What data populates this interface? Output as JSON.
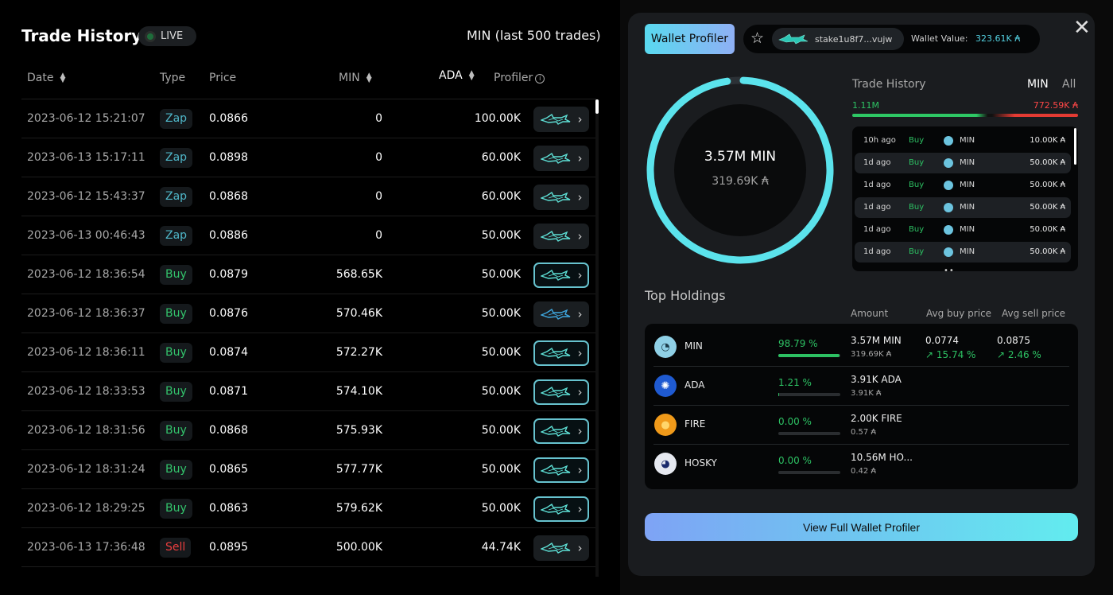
{
  "trade_history": {
    "title": "Trade History",
    "live_label": "LIVE",
    "subtitle": "MIN (last 500 trades)",
    "columns": {
      "date": "Date",
      "type": "Type",
      "price": "Price",
      "min": "MIN",
      "ada": "ADA",
      "profiler": "Profiler"
    },
    "rows": [
      {
        "date": "2023-06-12 15:21:07",
        "type": "Zap",
        "price": "0.0866",
        "min": "0",
        "ada": "100.00K",
        "highlight": false
      },
      {
        "date": "2023-06-13 15:17:11",
        "type": "Zap",
        "price": "0.0898",
        "min": "0",
        "ada": "60.00K",
        "highlight": false
      },
      {
        "date": "2023-06-12 15:43:37",
        "type": "Zap",
        "price": "0.0868",
        "min": "0",
        "ada": "60.00K",
        "highlight": false
      },
      {
        "date": "2023-06-13 00:46:43",
        "type": "Zap",
        "price": "0.0886",
        "min": "0",
        "ada": "50.00K",
        "highlight": false
      },
      {
        "date": "2023-06-12 18:36:54",
        "type": "Buy",
        "price": "0.0879",
        "min": "568.65K",
        "ada": "50.00K",
        "highlight": true
      },
      {
        "date": "2023-06-12 18:36:37",
        "type": "Buy",
        "price": "0.0876",
        "min": "570.46K",
        "ada": "50.00K",
        "highlight": false
      },
      {
        "date": "2023-06-12 18:36:11",
        "type": "Buy",
        "price": "0.0874",
        "min": "572.27K",
        "ada": "50.00K",
        "highlight": true
      },
      {
        "date": "2023-06-12 18:33:53",
        "type": "Buy",
        "price": "0.0871",
        "min": "574.10K",
        "ada": "50.00K",
        "highlight": true
      },
      {
        "date": "2023-06-12 18:31:56",
        "type": "Buy",
        "price": "0.0868",
        "min": "575.93K",
        "ada": "50.00K",
        "highlight": true
      },
      {
        "date": "2023-06-12 18:31:24",
        "type": "Buy",
        "price": "0.0865",
        "min": "577.77K",
        "ada": "50.00K",
        "highlight": true
      },
      {
        "date": "2023-06-12 18:29:25",
        "type": "Buy",
        "price": "0.0863",
        "min": "579.62K",
        "ada": "50.00K",
        "highlight": true
      },
      {
        "date": "2023-06-13 17:36:48",
        "type": "Sell",
        "price": "0.0895",
        "min": "500.00K",
        "ada": "44.74K",
        "highlight": false
      }
    ]
  },
  "wallet_profiler": {
    "button_label": "Wallet Profiler",
    "address": "stake1u8f7...vujw",
    "wallet_value_label": "Wallet Value:",
    "wallet_value": "323.61K ₳",
    "ring": {
      "main": "3.57M MIN",
      "sub": "319.69K ₳",
      "fill_fraction": 0.988
    },
    "trade_history": {
      "title": "Trade History",
      "tab_min": "MIN",
      "tab_all": "All",
      "buy_total": "1.11M",
      "sell_total": "772.59K",
      "items": [
        {
          "time": "10h ago",
          "type": "Buy",
          "coin": "MIN",
          "amount": "10.00K ₳"
        },
        {
          "time": "1d ago",
          "type": "Buy",
          "coin": "MIN",
          "amount": "50.00K ₳"
        },
        {
          "time": "1d ago",
          "type": "Buy",
          "coin": "MIN",
          "amount": "50.00K ₳"
        },
        {
          "time": "1d ago",
          "type": "Buy",
          "coin": "MIN",
          "amount": "50.00K ₳"
        },
        {
          "time": "1d ago",
          "type": "Buy",
          "coin": "MIN",
          "amount": "50.00K ₳"
        },
        {
          "time": "1d ago",
          "type": "Buy",
          "coin": "MIN",
          "amount": "50.00K ₳"
        }
      ]
    },
    "top_holdings": {
      "title": "Top Holdings",
      "col_amount": "Amount",
      "col_avg_buy": "Avg buy price",
      "col_avg_sell": "Avg sell price",
      "items": [
        {
          "name": "MIN",
          "icon": "min-token-icon",
          "pct": "98.79 %",
          "pct_value": 98.79,
          "amount": "3.57M MIN",
          "ada": "319.69K ₳",
          "avg_buy": "0.0774",
          "avg_buy_change": "↗ 15.74 %",
          "avg_sell": "0.0875",
          "avg_sell_change": "↗ 2.46 %"
        },
        {
          "name": "ADA",
          "icon": "ada-token-icon",
          "pct": "1.21 %",
          "pct_value": 1.21,
          "amount": "3.91K ADA",
          "ada": "3.91K ₳",
          "avg_buy": "",
          "avg_buy_change": "",
          "avg_sell": "",
          "avg_sell_change": ""
        },
        {
          "name": "FIRE",
          "icon": "fire-token-icon",
          "pct": "0.00 %",
          "pct_value": 0,
          "amount": "2.00K FIRE",
          "ada": "0.57 ₳",
          "avg_buy": "",
          "avg_buy_change": "",
          "avg_sell": "",
          "avg_sell_change": ""
        },
        {
          "name": "HOSKY",
          "icon": "hosky-token-icon",
          "pct": "0.00 %",
          "pct_value": 0,
          "amount": "10.56M HO...",
          "ada": "0.42 ₳",
          "avg_buy": "",
          "avg_buy_change": "",
          "avg_sell": "",
          "avg_sell_change": ""
        }
      ]
    },
    "view_full_label": "View Full Wallet Profiler"
  },
  "colors": {
    "accent": "#59d9ef",
    "buy": "#33c46c",
    "sell": "#ea3e3e",
    "zap": "#4fb7c9"
  }
}
